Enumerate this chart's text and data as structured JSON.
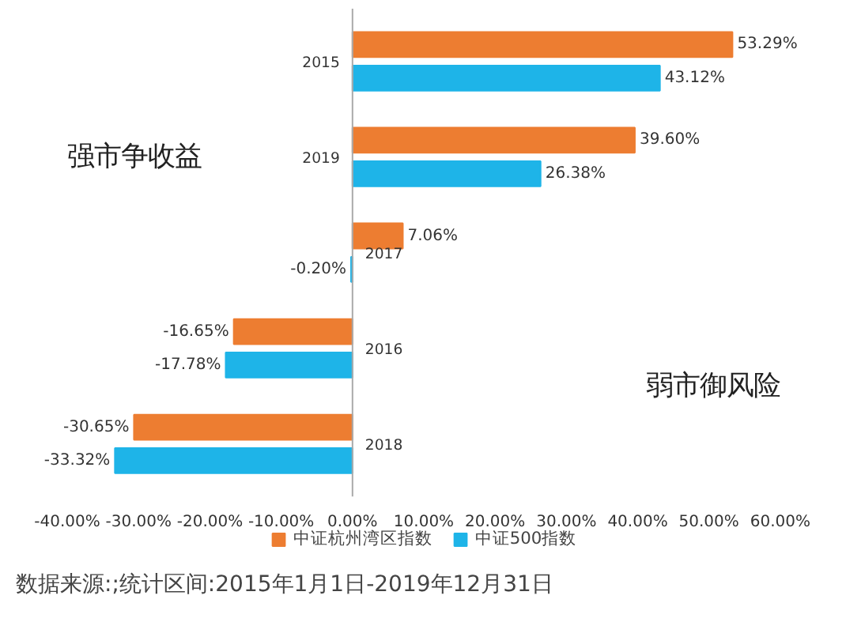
{
  "chart_data": {
    "type": "bar",
    "orientation": "horizontal",
    "categories": [
      "2015",
      "2019",
      "2017",
      "2016",
      "2018"
    ],
    "series": [
      {
        "name": "中证杭州湾区指数",
        "color": "#ed7d31",
        "values": [
          53.29,
          39.6,
          7.06,
          -16.65,
          -30.65
        ],
        "value_labels": [
          "53.29%",
          "39.60%",
          "7.06%",
          "-16.65%",
          "-30.65%"
        ]
      },
      {
        "name": "中证500指数",
        "color": "#1eb4e8",
        "values": [
          43.12,
          26.38,
          -0.2,
          -17.78,
          -33.32
        ],
        "value_labels": [
          "43.12%",
          "26.38%",
          "-0.20%",
          "-17.78%",
          "-33.32%"
        ]
      }
    ],
    "xlim": [
      -40,
      60
    ],
    "xticks": [
      {
        "value": -40,
        "label": "-40.00%"
      },
      {
        "value": -30,
        "label": "-30.00%"
      },
      {
        "value": -20,
        "label": "-20.00%"
      },
      {
        "value": -10,
        "label": "-10.00%"
      },
      {
        "value": 0,
        "label": "0.00%"
      },
      {
        "value": 10,
        "label": "10.00%"
      },
      {
        "value": 20,
        "label": "20.00%"
      },
      {
        "value": 30,
        "label": "30.00%"
      },
      {
        "value": 40,
        "label": "40.00%"
      },
      {
        "value": 50,
        "label": "50.00%"
      },
      {
        "value": 60,
        "label": "60.00%"
      }
    ],
    "annotations": [
      "强市争收益",
      "弱市御风险",
      "数据来源:;统计区间:2015年1月1日-2019年12月31日"
    ],
    "legend": "bottom",
    "grid": false
  }
}
